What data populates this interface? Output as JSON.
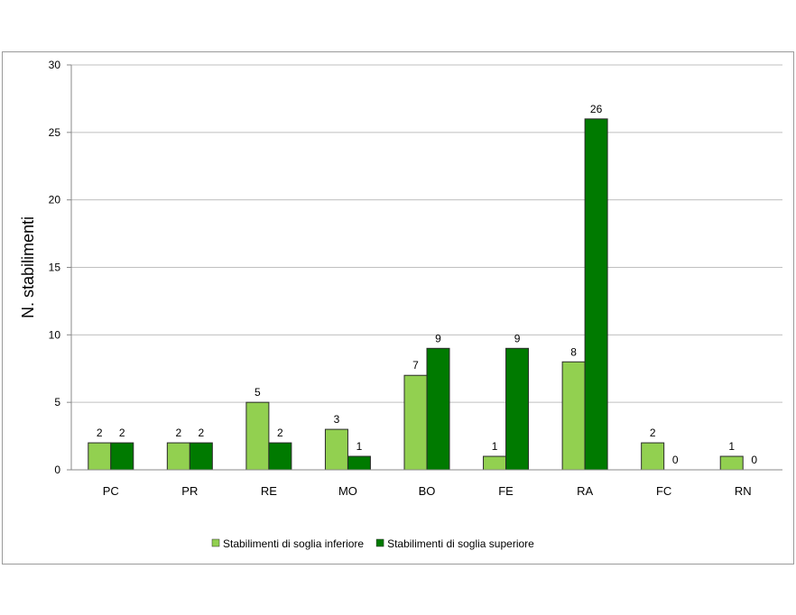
{
  "chart_data": {
    "type": "bar",
    "categories": [
      "PC",
      "PR",
      "RE",
      "MO",
      "BO",
      "FE",
      "RA",
      "FC",
      "RN"
    ],
    "series": [
      {
        "name": "Stabilimenti di soglia inferiore",
        "values": [
          2,
          2,
          5,
          3,
          7,
          1,
          8,
          2,
          1
        ],
        "color": "#92d050"
      },
      {
        "name": "Stabilimenti di soglia superiore",
        "values": [
          2,
          2,
          2,
          1,
          9,
          9,
          26,
          0,
          0
        ],
        "color": "#007a00"
      }
    ],
    "title": "",
    "xlabel": "",
    "ylabel": "N. stabilimenti",
    "ylim": [
      0,
      30
    ],
    "yticks": [
      0,
      5,
      10,
      15,
      20,
      25,
      30
    ],
    "grid": true,
    "legend": "bottom"
  }
}
